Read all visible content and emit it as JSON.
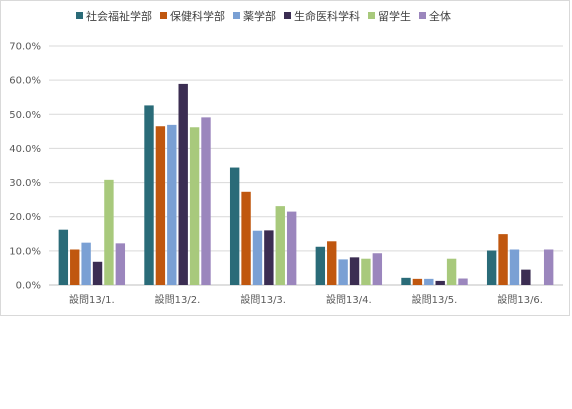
{
  "chart_data": {
    "type": "bar",
    "title": "",
    "xlabel": "",
    "ylabel": "",
    "categories": [
      "設問13/1.",
      "設問13/2.",
      "設問13/3.",
      "設問13/4.",
      "設問13/5.",
      "設問13/6."
    ],
    "ylim": [
      0,
      0.7
    ],
    "yticks": [
      "0.0%",
      "10.0%",
      "20.0%",
      "30.0%",
      "40.0%",
      "50.0%",
      "60.0%",
      "70.0%"
    ],
    "value_format": "percent",
    "grid": true,
    "legend_position": "top",
    "series": [
      {
        "name": "社会福祉学部",
        "color": "#2a6b78",
        "values": [
          0.162,
          0.526,
          0.344,
          0.112,
          0.021,
          0.101
        ]
      },
      {
        "name": "保健科学部",
        "color": "#c0570f",
        "values": [
          0.104,
          0.465,
          0.273,
          0.128,
          0.018,
          0.149
        ]
      },
      {
        "name": "薬学部",
        "color": "#7aa0d4",
        "values": [
          0.124,
          0.469,
          0.159,
          0.075,
          0.018,
          0.104
        ]
      },
      {
        "name": "生命医科学科",
        "color": "#3b2d52",
        "values": [
          0.068,
          0.589,
          0.16,
          0.081,
          0.012,
          0.045
        ]
      },
      {
        "name": "留学生",
        "color": "#a8c97c",
        "values": [
          0.308,
          0.462,
          0.231,
          0.077,
          0.077,
          0.0
        ]
      },
      {
        "name": "全体",
        "color": "#9b86bd",
        "values": [
          0.122,
          0.491,
          0.215,
          0.093,
          0.019,
          0.104
        ]
      }
    ]
  }
}
